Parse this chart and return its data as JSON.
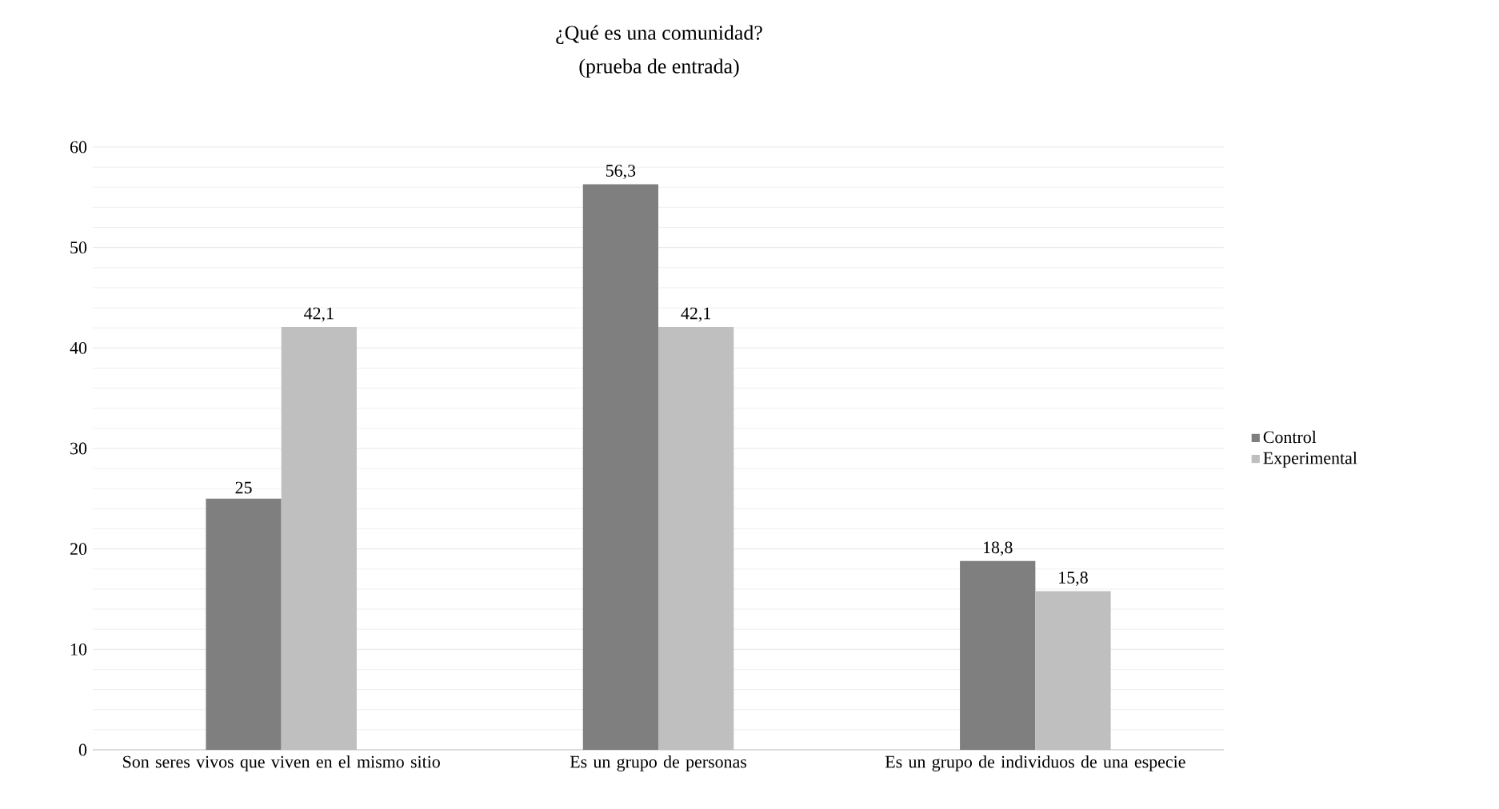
{
  "chart_data": {
    "type": "bar",
    "title": "¿Qué es una comunidad?",
    "subtitle": "(prueba de entrada)",
    "categories": [
      "Son seres vivos que viven en el mismo sitio",
      "Es un grupo de personas",
      "Es un grupo de individuos de una especie"
    ],
    "series": [
      {
        "name": "Control",
        "color": "#7f7f7f",
        "values": [
          25,
          56.3,
          18.8
        ],
        "value_labels": [
          "25",
          "56,3",
          "18,8"
        ]
      },
      {
        "name": "Experimental",
        "color": "#bfbfbf",
        "values": [
          42.1,
          42.1,
          15.8
        ],
        "value_labels": [
          "42,1",
          "42,1",
          "15,8"
        ]
      }
    ],
    "ylim": [
      0,
      60
    ],
    "yticks": [
      0,
      10,
      20,
      30,
      40,
      50,
      60
    ],
    "grid": "y",
    "legend": "right"
  }
}
